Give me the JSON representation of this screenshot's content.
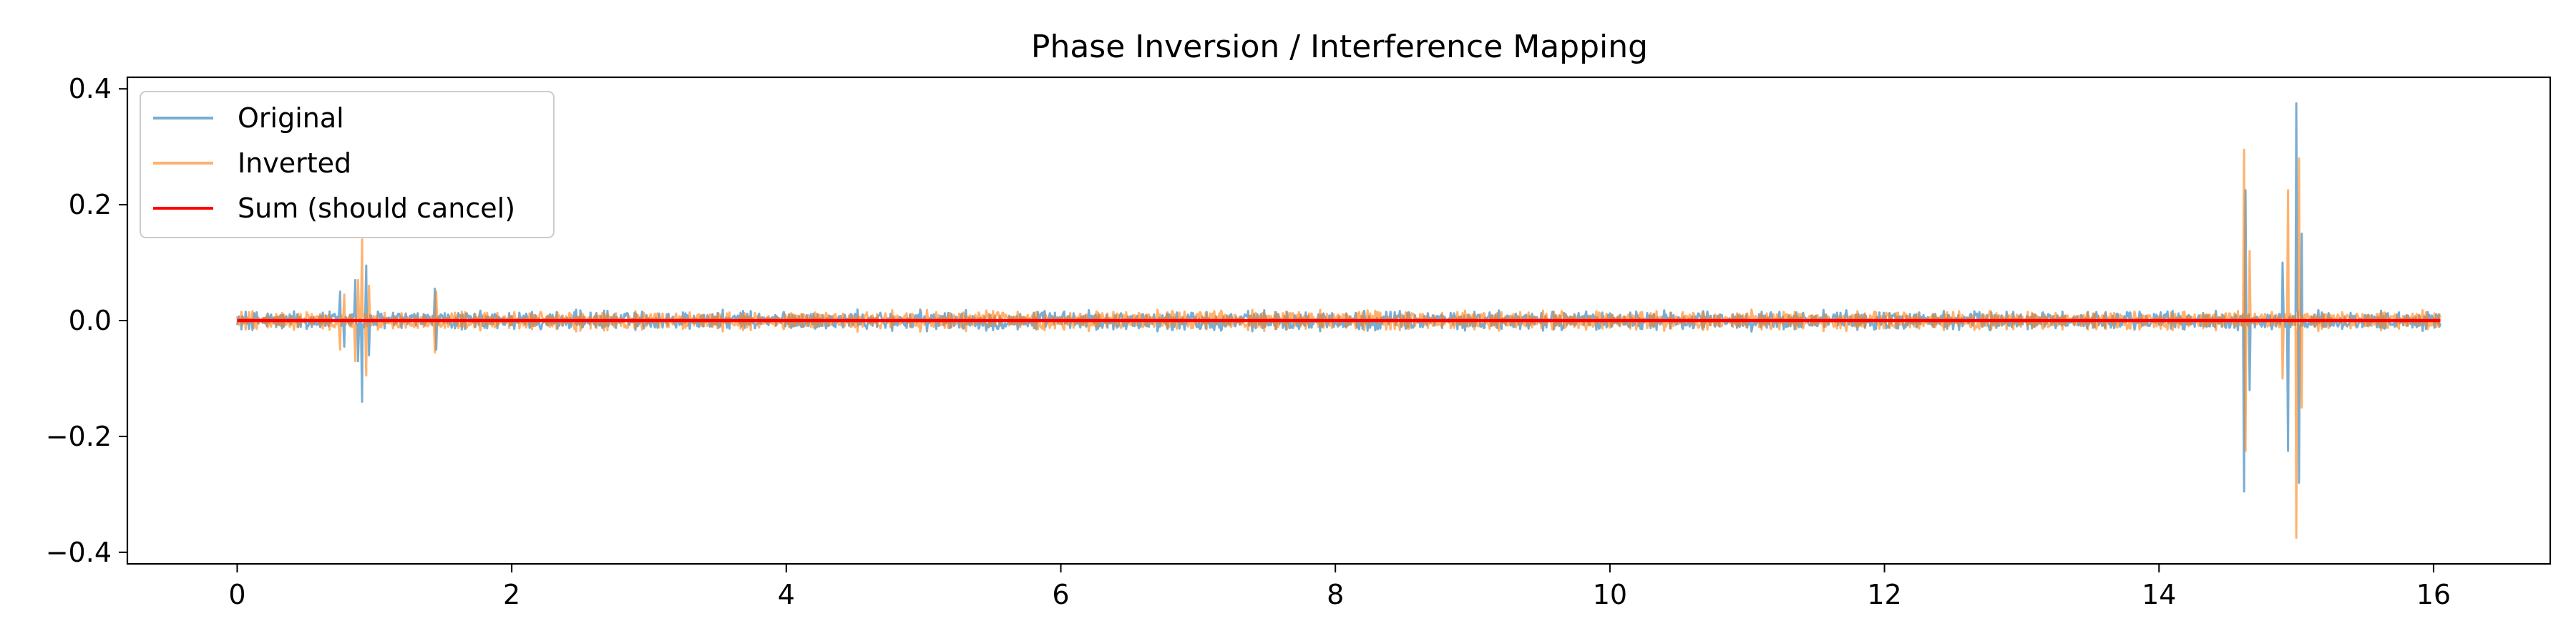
{
  "chart_data": {
    "type": "line",
    "title": "Phase Inversion / Interference Mapping",
    "xlabel": "",
    "ylabel": "",
    "xlim": [
      -0.8,
      16.85
    ],
    "ylim": [
      -0.42,
      0.42
    ],
    "x_ticks": [
      0,
      2,
      4,
      6,
      8,
      10,
      12,
      14,
      16
    ],
    "x_tick_labels": [
      "0",
      "2",
      "4",
      "6",
      "8",
      "10",
      "12",
      "14",
      "16"
    ],
    "y_ticks": [
      -0.4,
      -0.2,
      0.0,
      0.2,
      0.4
    ],
    "y_tick_labels": [
      "−0.4",
      "−0.2",
      "0.0",
      "0.2",
      "0.4"
    ],
    "grid": false,
    "legend_position": "top-left",
    "baseline_noise_amplitude": 0.015,
    "x_range": [
      0,
      16.05
    ],
    "series": [
      {
        "name": "Original",
        "color": "#1f77b4",
        "opacity": 0.6,
        "peaks": [
          {
            "x": 0.75,
            "y": 0.05
          },
          {
            "x": 0.78,
            "y": -0.045
          },
          {
            "x": 0.86,
            "y": 0.07
          },
          {
            "x": 0.88,
            "y": -0.07
          },
          {
            "x": 0.91,
            "y": -0.14
          },
          {
            "x": 0.94,
            "y": 0.095
          },
          {
            "x": 0.96,
            "y": -0.06
          },
          {
            "x": 1.44,
            "y": 0.055
          },
          {
            "x": 1.45,
            "y": -0.05
          },
          {
            "x": 14.62,
            "y": -0.295
          },
          {
            "x": 14.63,
            "y": 0.225
          },
          {
            "x": 14.66,
            "y": -0.12
          },
          {
            "x": 14.9,
            "y": 0.1
          },
          {
            "x": 14.94,
            "y": -0.225
          },
          {
            "x": 15.0,
            "y": 0.375
          },
          {
            "x": 15.02,
            "y": -0.28
          },
          {
            "x": 15.04,
            "y": 0.15
          }
        ]
      },
      {
        "name": "Inverted",
        "color": "#ff7f0e",
        "opacity": 0.6,
        "peaks": [
          {
            "x": 0.75,
            "y": -0.05
          },
          {
            "x": 0.78,
            "y": 0.045
          },
          {
            "x": 0.86,
            "y": -0.07
          },
          {
            "x": 0.88,
            "y": 0.07
          },
          {
            "x": 0.91,
            "y": 0.14
          },
          {
            "x": 0.94,
            "y": -0.095
          },
          {
            "x": 0.96,
            "y": 0.06
          },
          {
            "x": 1.44,
            "y": -0.055
          },
          {
            "x": 1.45,
            "y": 0.05
          },
          {
            "x": 14.62,
            "y": 0.295
          },
          {
            "x": 14.63,
            "y": -0.225
          },
          {
            "x": 14.66,
            "y": 0.12
          },
          {
            "x": 14.9,
            "y": -0.1
          },
          {
            "x": 14.94,
            "y": 0.225
          },
          {
            "x": 15.0,
            "y": -0.375
          },
          {
            "x": 15.02,
            "y": 0.28
          },
          {
            "x": 15.04,
            "y": -0.15
          }
        ]
      },
      {
        "name": "Sum (should cancel)",
        "color": "#ff0000",
        "opacity": 1.0,
        "points": [
          {
            "x": 0,
            "y": 0
          },
          {
            "x": 16.05,
            "y": 0
          }
        ]
      }
    ]
  }
}
